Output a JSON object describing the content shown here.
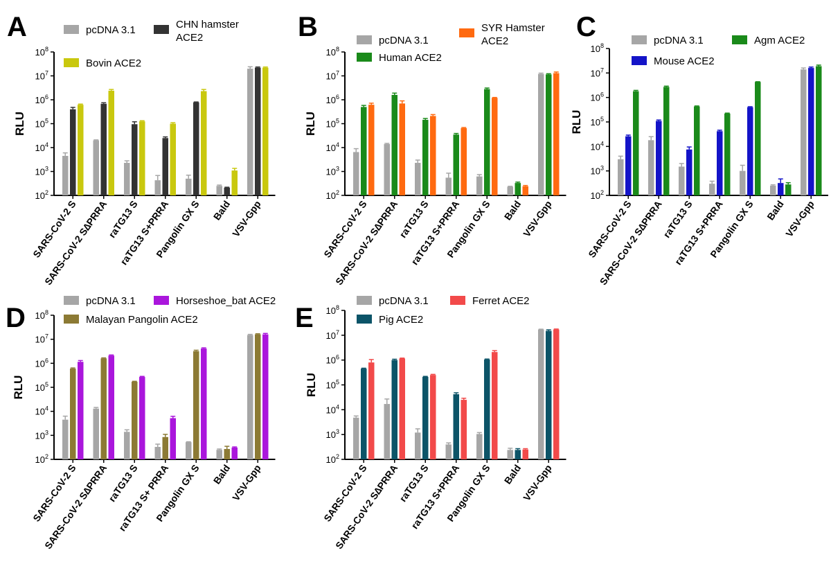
{
  "chart_data": [
    {
      "type": "bar",
      "panel": "A",
      "ylabel": "RLU",
      "yscale": "log",
      "ylim": [
        100,
        100000000
      ],
      "categories": [
        "SARS-CoV-2 S",
        "SARS-CoV-2 S∆PRRA",
        "raTG13 S",
        "raTG13 S+PRRA",
        "Pangolin GX S",
        "Bald",
        "VSV-Gpp"
      ],
      "series": [
        {
          "name": "pcDNA 3.1",
          "color": "#a6a6a6",
          "values": [
            4500,
            20000,
            2300,
            430,
            500,
            250,
            20000000
          ],
          "errors": [
            1500,
            1000,
            500,
            250,
            200,
            20,
            4000000
          ]
        },
        {
          "name": "CHN hamster ACE2",
          "color": "#333333",
          "values": [
            400000,
            680000,
            95000,
            25000,
            780000,
            210,
            22000000
          ],
          "errors": [
            80000,
            70000,
            25000,
            3000,
            30000,
            10,
            1500000
          ]
        },
        {
          "name": "Bovin ACE2",
          "color": "#c9c80e",
          "values": [
            620000,
            2400000,
            125000,
            100000,
            2300000,
            1100,
            22000000
          ],
          "errors": [
            40000,
            300000,
            8000,
            10000,
            400000,
            250,
            1500000
          ]
        }
      ],
      "legend": [
        "pcDNA 3.1",
        "CHN hamster\nACE2",
        "Bovin ACE2"
      ]
    },
    {
      "type": "bar",
      "panel": "B",
      "ylabel": "RLU",
      "yscale": "log",
      "ylim": [
        100,
        100000000
      ],
      "categories": [
        "SARS-CoV-2 S",
        "SARS-CoV-2 S∆PRRA",
        "raTG13 S",
        "raTG13 S+PRRA",
        "Pangolin GX S",
        "Bald",
        "VSV-Gpp"
      ],
      "series": [
        {
          "name": "pcDNA 3.1",
          "color": "#a6a6a6",
          "values": [
            6500,
            14000,
            2300,
            550,
            620,
            230,
            12000000
          ],
          "errors": [
            2500,
            1000,
            700,
            300,
            120,
            10,
            1000000
          ]
        },
        {
          "name": "Human ACE2",
          "color": "#1a8a1a",
          "values": [
            500000,
            1600000,
            145000,
            35000,
            2800000,
            330,
            11500000
          ],
          "errors": [
            80000,
            300000,
            20000,
            4000,
            300000,
            30,
            800000
          ]
        },
        {
          "name": "SYR Hamster ACE2",
          "color": "#ff6a10",
          "values": [
            620000,
            700000,
            210000,
            65000,
            1200000,
            240,
            13000000
          ],
          "errors": [
            100000,
            200000,
            30000,
            4000,
            50000,
            20,
            1500000
          ]
        }
      ],
      "legend": [
        "pcDNA 3.1",
        "SYR Hamster\nACE2",
        "Human ACE2"
      ]
    },
    {
      "type": "bar",
      "panel": "C",
      "ylabel": "RLU",
      "yscale": "log",
      "ylim": [
        100,
        100000000
      ],
      "categories": [
        "SARS-CoV-2 S",
        "SARS-CoV-2 S∆PRRA",
        "raTG13 S",
        "raTG13 S+PRRA",
        "Pangolin GX S",
        "Bald",
        "VSV-Gpp"
      ],
      "series": [
        {
          "name": "pcDNA 3.1",
          "color": "#a6a6a6",
          "values": [
            3000,
            18000,
            1500,
            300,
            1000,
            250,
            14000000
          ],
          "errors": [
            1000,
            7000,
            500,
            80,
            700,
            20,
            2000000
          ]
        },
        {
          "name": "Mouse ACE2",
          "color": "#1414c8",
          "values": [
            26000,
            110000,
            7500,
            42000,
            400000,
            320,
            16000000
          ],
          "errors": [
            3000,
            10000,
            2000,
            4000,
            20000,
            150,
            1500000
          ]
        },
        {
          "name": "Agm ACE2",
          "color": "#1a8a1a",
          "values": [
            1800000,
            2700000,
            430000,
            220000,
            4300000,
            280,
            19000000
          ],
          "errors": [
            150000,
            200000,
            20000,
            10000,
            100000,
            50,
            2000000
          ]
        }
      ],
      "legend": [
        "pcDNA 3.1",
        "Agm ACE2",
        "Mouse ACE2"
      ]
    },
    {
      "type": "bar",
      "panel": "D",
      "ylabel": "RLU",
      "yscale": "log",
      "ylim": [
        100,
        100000000
      ],
      "categories": [
        "SARS-CoV-2 S",
        "SARS-CoV-2 S∆PRRA",
        "raTG13 S",
        "raTG13 S+ PRRA",
        "Pangolin GX S",
        "Bald",
        "VSV-Gpp"
      ],
      "series": [
        {
          "name": "pcDNA 3.1",
          "color": "#a6a6a6",
          "values": [
            4500,
            13000,
            1400,
            330,
            520,
            250,
            15000000
          ],
          "errors": [
            1800,
            1500,
            300,
            100,
            20,
            20,
            1000000
          ]
        },
        {
          "name": "Malayan Pangolin ACE2",
          "color": "#8c7a34",
          "values": [
            600000,
            1600000,
            170000,
            850,
            3200000,
            270,
            16000000
          ],
          "errors": [
            40000,
            80000,
            8000,
            250,
            300000,
            80,
            1000000
          ]
        },
        {
          "name": "Horseshoe_bat ACE2",
          "color": "#aa16dc",
          "values": [
            1150000,
            2100000,
            270000,
            5200,
            4100000,
            310,
            16000000
          ],
          "errors": [
            150000,
            120000,
            15000,
            1000,
            300000,
            20,
            1500000
          ]
        }
      ],
      "legend": [
        "pcDNA 3.1",
        "Horseshoe_bat ACE2",
        "Malayan Pangolin ACE2"
      ]
    },
    {
      "type": "bar",
      "panel": "E",
      "ylabel": "RLU",
      "yscale": "log",
      "ylim": [
        100,
        100000000
      ],
      "categories": [
        "SARS-CoV-2 S",
        "SARS-CoV-2 S∆PRRA",
        "raTG13 S",
        "raTG13 S+PRRA",
        "Pangolin GX S",
        "Bald",
        "VSV-Gpp"
      ],
      "series": [
        {
          "name": "pcDNA 3.1",
          "color": "#a6a6a6",
          "values": [
            4800,
            17000,
            1200,
            400,
            1050,
            240,
            17000000
          ],
          "errors": [
            800,
            10000,
            500,
            60,
            150,
            40,
            500000
          ]
        },
        {
          "name": "Pig ACE2",
          "color": "#0c5468",
          "values": [
            450000,
            1000000,
            210000,
            42000,
            1050000,
            240,
            15000000
          ],
          "errors": [
            20000,
            80000,
            10000,
            6000,
            50000,
            30,
            1500000
          ]
        },
        {
          "name": "Ferret ACE2",
          "color": "#f24a4a",
          "values": [
            800000,
            1150000,
            250000,
            25000,
            2100000,
            250,
            17000000
          ],
          "errors": [
            250000,
            50000,
            15000,
            4000,
            300000,
            20,
            800000
          ]
        }
      ],
      "legend": [
        "pcDNA 3.1",
        "Ferret ACE2",
        "Pig ACE2"
      ]
    }
  ]
}
